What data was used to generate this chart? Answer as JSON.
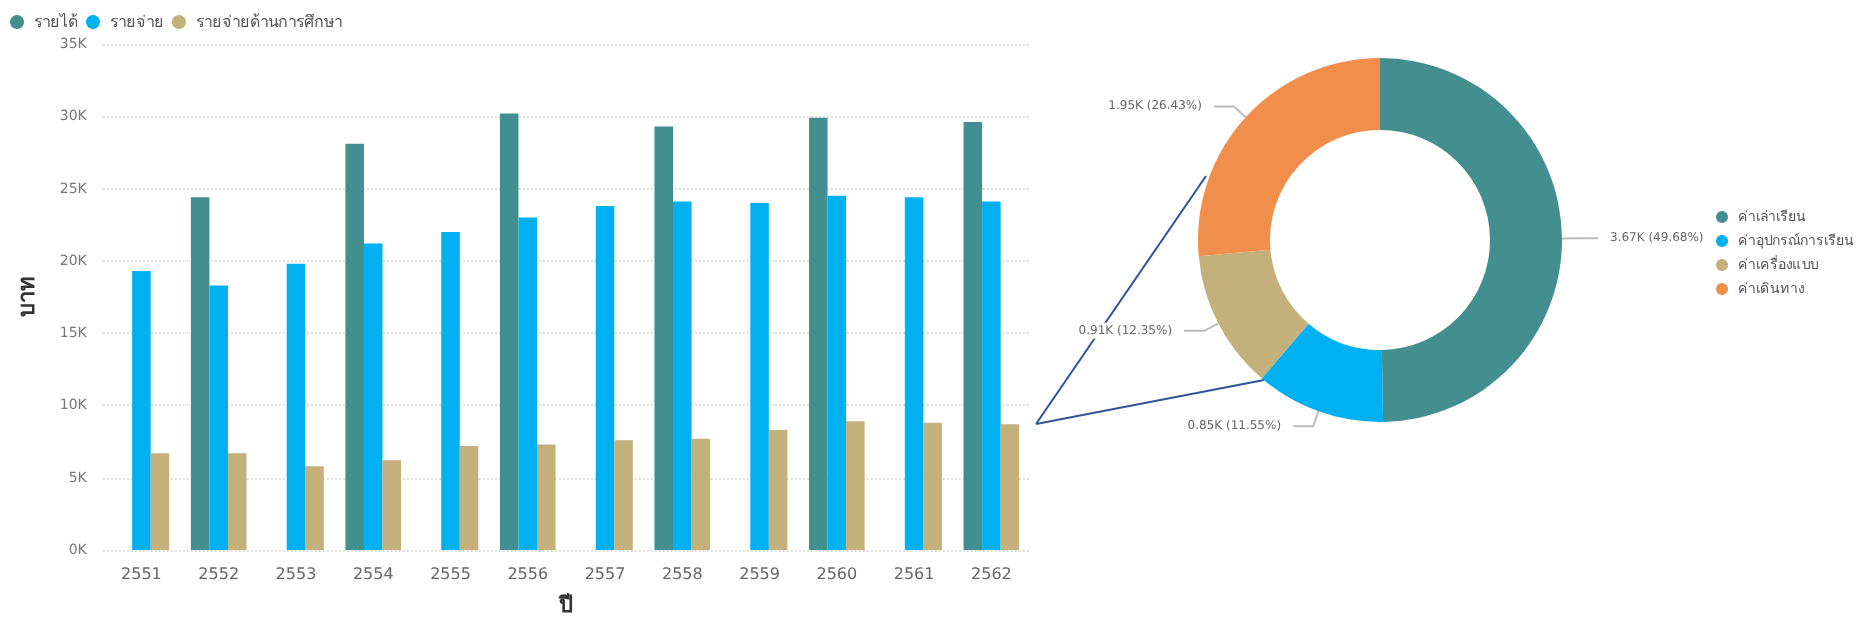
{
  "chart_data": [
    {
      "type": "bar",
      "xlabel": "ปี",
      "ylabel": "บาท",
      "categories": [
        "2551",
        "2552",
        "2553",
        "2554",
        "2555",
        "2556",
        "2557",
        "2558",
        "2559",
        "2560",
        "2561",
        "2562"
      ],
      "series": [
        {
          "name": "รายได้",
          "color": "#438f8f",
          "values": [
            null,
            24400,
            null,
            28100,
            null,
            30200,
            null,
            29300,
            null,
            29900,
            null,
            29600
          ]
        },
        {
          "name": "รายจ่าย",
          "color": "#00b0f0",
          "values": [
            19300,
            18300,
            19800,
            21200,
            22000,
            23000,
            23800,
            24100,
            24000,
            24500,
            24400,
            24100
          ]
        },
        {
          "name": "รายจ่ายด้านการศึกษา",
          "color": "#c4b07b",
          "values": [
            6700,
            6700,
            5800,
            6200,
            7200,
            7300,
            7600,
            7700,
            8300,
            8900,
            8800,
            8700
          ]
        }
      ],
      "ylim": [
        0,
        35000
      ],
      "yticks": [
        {
          "value": 0,
          "label": "0K"
        },
        {
          "value": 5000,
          "label": "5K"
        },
        {
          "value": 10000,
          "label": "10K"
        },
        {
          "value": 15000,
          "label": "15K"
        },
        {
          "value": 20000,
          "label": "20K"
        },
        {
          "value": 25000,
          "label": "25K"
        },
        {
          "value": 30000,
          "label": "30K"
        },
        {
          "value": 35000,
          "label": "35K"
        }
      ],
      "grid": "y",
      "legend": "top left"
    },
    {
      "type": "donut",
      "categories": [
        "ค่าเล่าเรียน",
        "ค่าอุปกรณ์การเรียน",
        "ค่าเครื่องแบบ",
        "ค่าเดินทาง"
      ],
      "values": [
        3670,
        850,
        910,
        1950
      ],
      "value_labels": [
        "3.67K (49.68%)",
        "0.85K (11.55%)",
        "0.91K (12.35%)",
        "1.95K (26.43%)"
      ],
      "colors": [
        "#438f8f",
        "#00b0f0",
        "#c4b07b",
        "#f28e4c"
      ],
      "legend": "right"
    }
  ]
}
